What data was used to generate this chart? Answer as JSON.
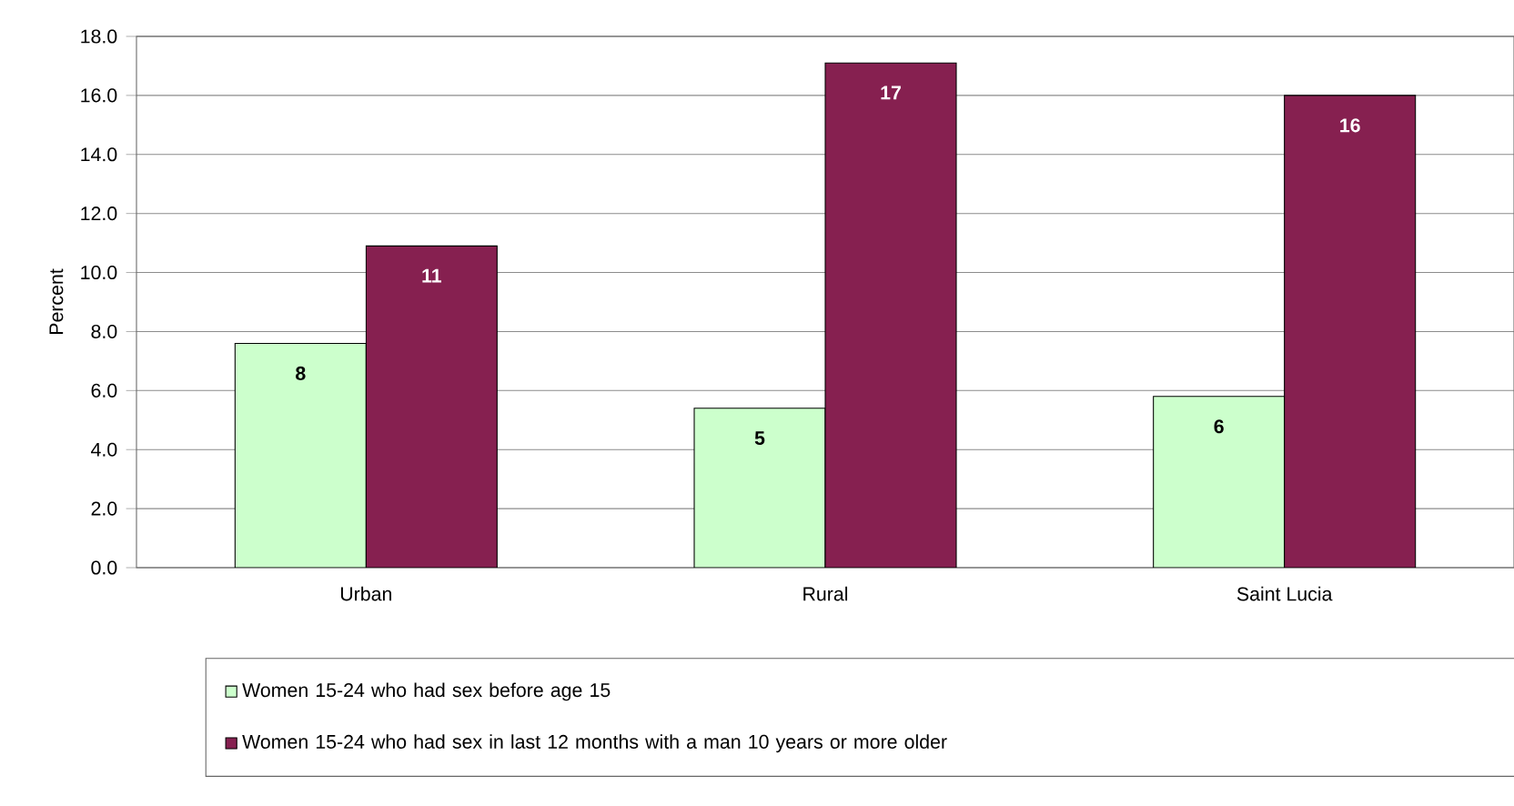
{
  "chart_data": {
    "type": "bar",
    "ylabel": "Percent",
    "categories": [
      "Urban",
      "Rural",
      "Saint Lucia"
    ],
    "series": [
      {
        "name": "Women 15-24 who had sex before age 15",
        "color": "#ccffcc",
        "values": [
          7.6,
          5.4,
          5.8
        ],
        "value_labels": [
          "8",
          "5",
          "6"
        ]
      },
      {
        "name": "Women 15-24 who had sex in last 12 months with a man 10 years or more older",
        "color": "#862050",
        "values": [
          10.9,
          17.1,
          16.0
        ],
        "value_labels": [
          "11",
          "17",
          "16"
        ]
      }
    ],
    "ylim": [
      0,
      18
    ],
    "yticks": [
      {
        "value": 0,
        "label": "0.0"
      },
      {
        "value": 2,
        "label": "2.0"
      },
      {
        "value": 4,
        "label": "4.0"
      },
      {
        "value": 6,
        "label": "6.0"
      },
      {
        "value": 8,
        "label": "8.0"
      },
      {
        "value": 10,
        "label": "10.0"
      },
      {
        "value": 12,
        "label": "12.0"
      },
      {
        "value": 14,
        "label": "14.0"
      },
      {
        "value": 16,
        "label": "16.0"
      },
      {
        "value": 18,
        "label": "18.0"
      }
    ],
    "grid": "y",
    "legend": "bottom"
  }
}
